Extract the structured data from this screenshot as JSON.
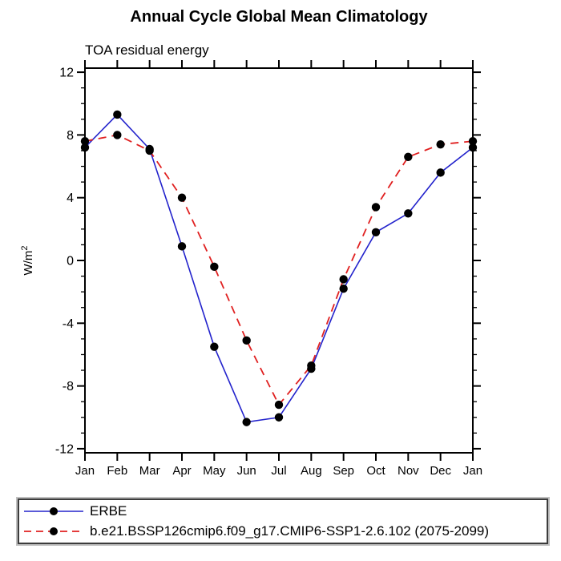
{
  "header": {
    "title": "Annual Cycle Global Mean Climatology",
    "subtitle": "TOA residual energy"
  },
  "chart_data": {
    "type": "line",
    "title": "Annual Cycle Global Mean Climatology",
    "subtitle": "TOA residual energy",
    "xlabel": "",
    "ylabel": "W/m²",
    "ylabel_parts": {
      "base": "W/m",
      "sup": "2"
    },
    "x_categories": [
      "Jan",
      "Feb",
      "Mar",
      "Apr",
      "May",
      "Jun",
      "Jul",
      "Aug",
      "Sep",
      "Oct",
      "Nov",
      "Dec",
      "Jan"
    ],
    "ylim": [
      -12.26,
      12.26
    ],
    "yticks_major": [
      -12,
      -8,
      -4,
      0,
      4,
      8,
      12
    ],
    "ytick_minor_step": 1,
    "grid": false,
    "legend_position": "bottom-box",
    "axis_color": "#000000",
    "series": [
      {
        "name": "ERBE",
        "color": "#2323cc",
        "line_style": "solid",
        "marker": "filled-circle",
        "marker_color": "#000000",
        "values": [
          7.2,
          9.3,
          7.1,
          0.9,
          -5.5,
          -10.3,
          -10.0,
          -6.9,
          -1.8,
          1.8,
          3.0,
          5.6,
          7.2
        ]
      },
      {
        "name": "b.e21.BSSP126cmip6.f09_g17.CMIP6-SSP1-2.6.102 (2075-2099)",
        "color": "#e02020",
        "line_style": "dashed",
        "marker": "filled-circle",
        "marker_color": "#000000",
        "values": [
          7.6,
          8.0,
          7.0,
          4.0,
          -0.4,
          -5.1,
          -9.2,
          -6.7,
          -1.2,
          3.4,
          6.6,
          7.4,
          7.6
        ]
      }
    ]
  },
  "legend": {
    "items": [
      {
        "label": "ERBE"
      },
      {
        "label": "b.e21.BSSP126cmip6.f09_g17.CMIP6-SSP1-2.6.102 (2075-2099)"
      }
    ]
  }
}
